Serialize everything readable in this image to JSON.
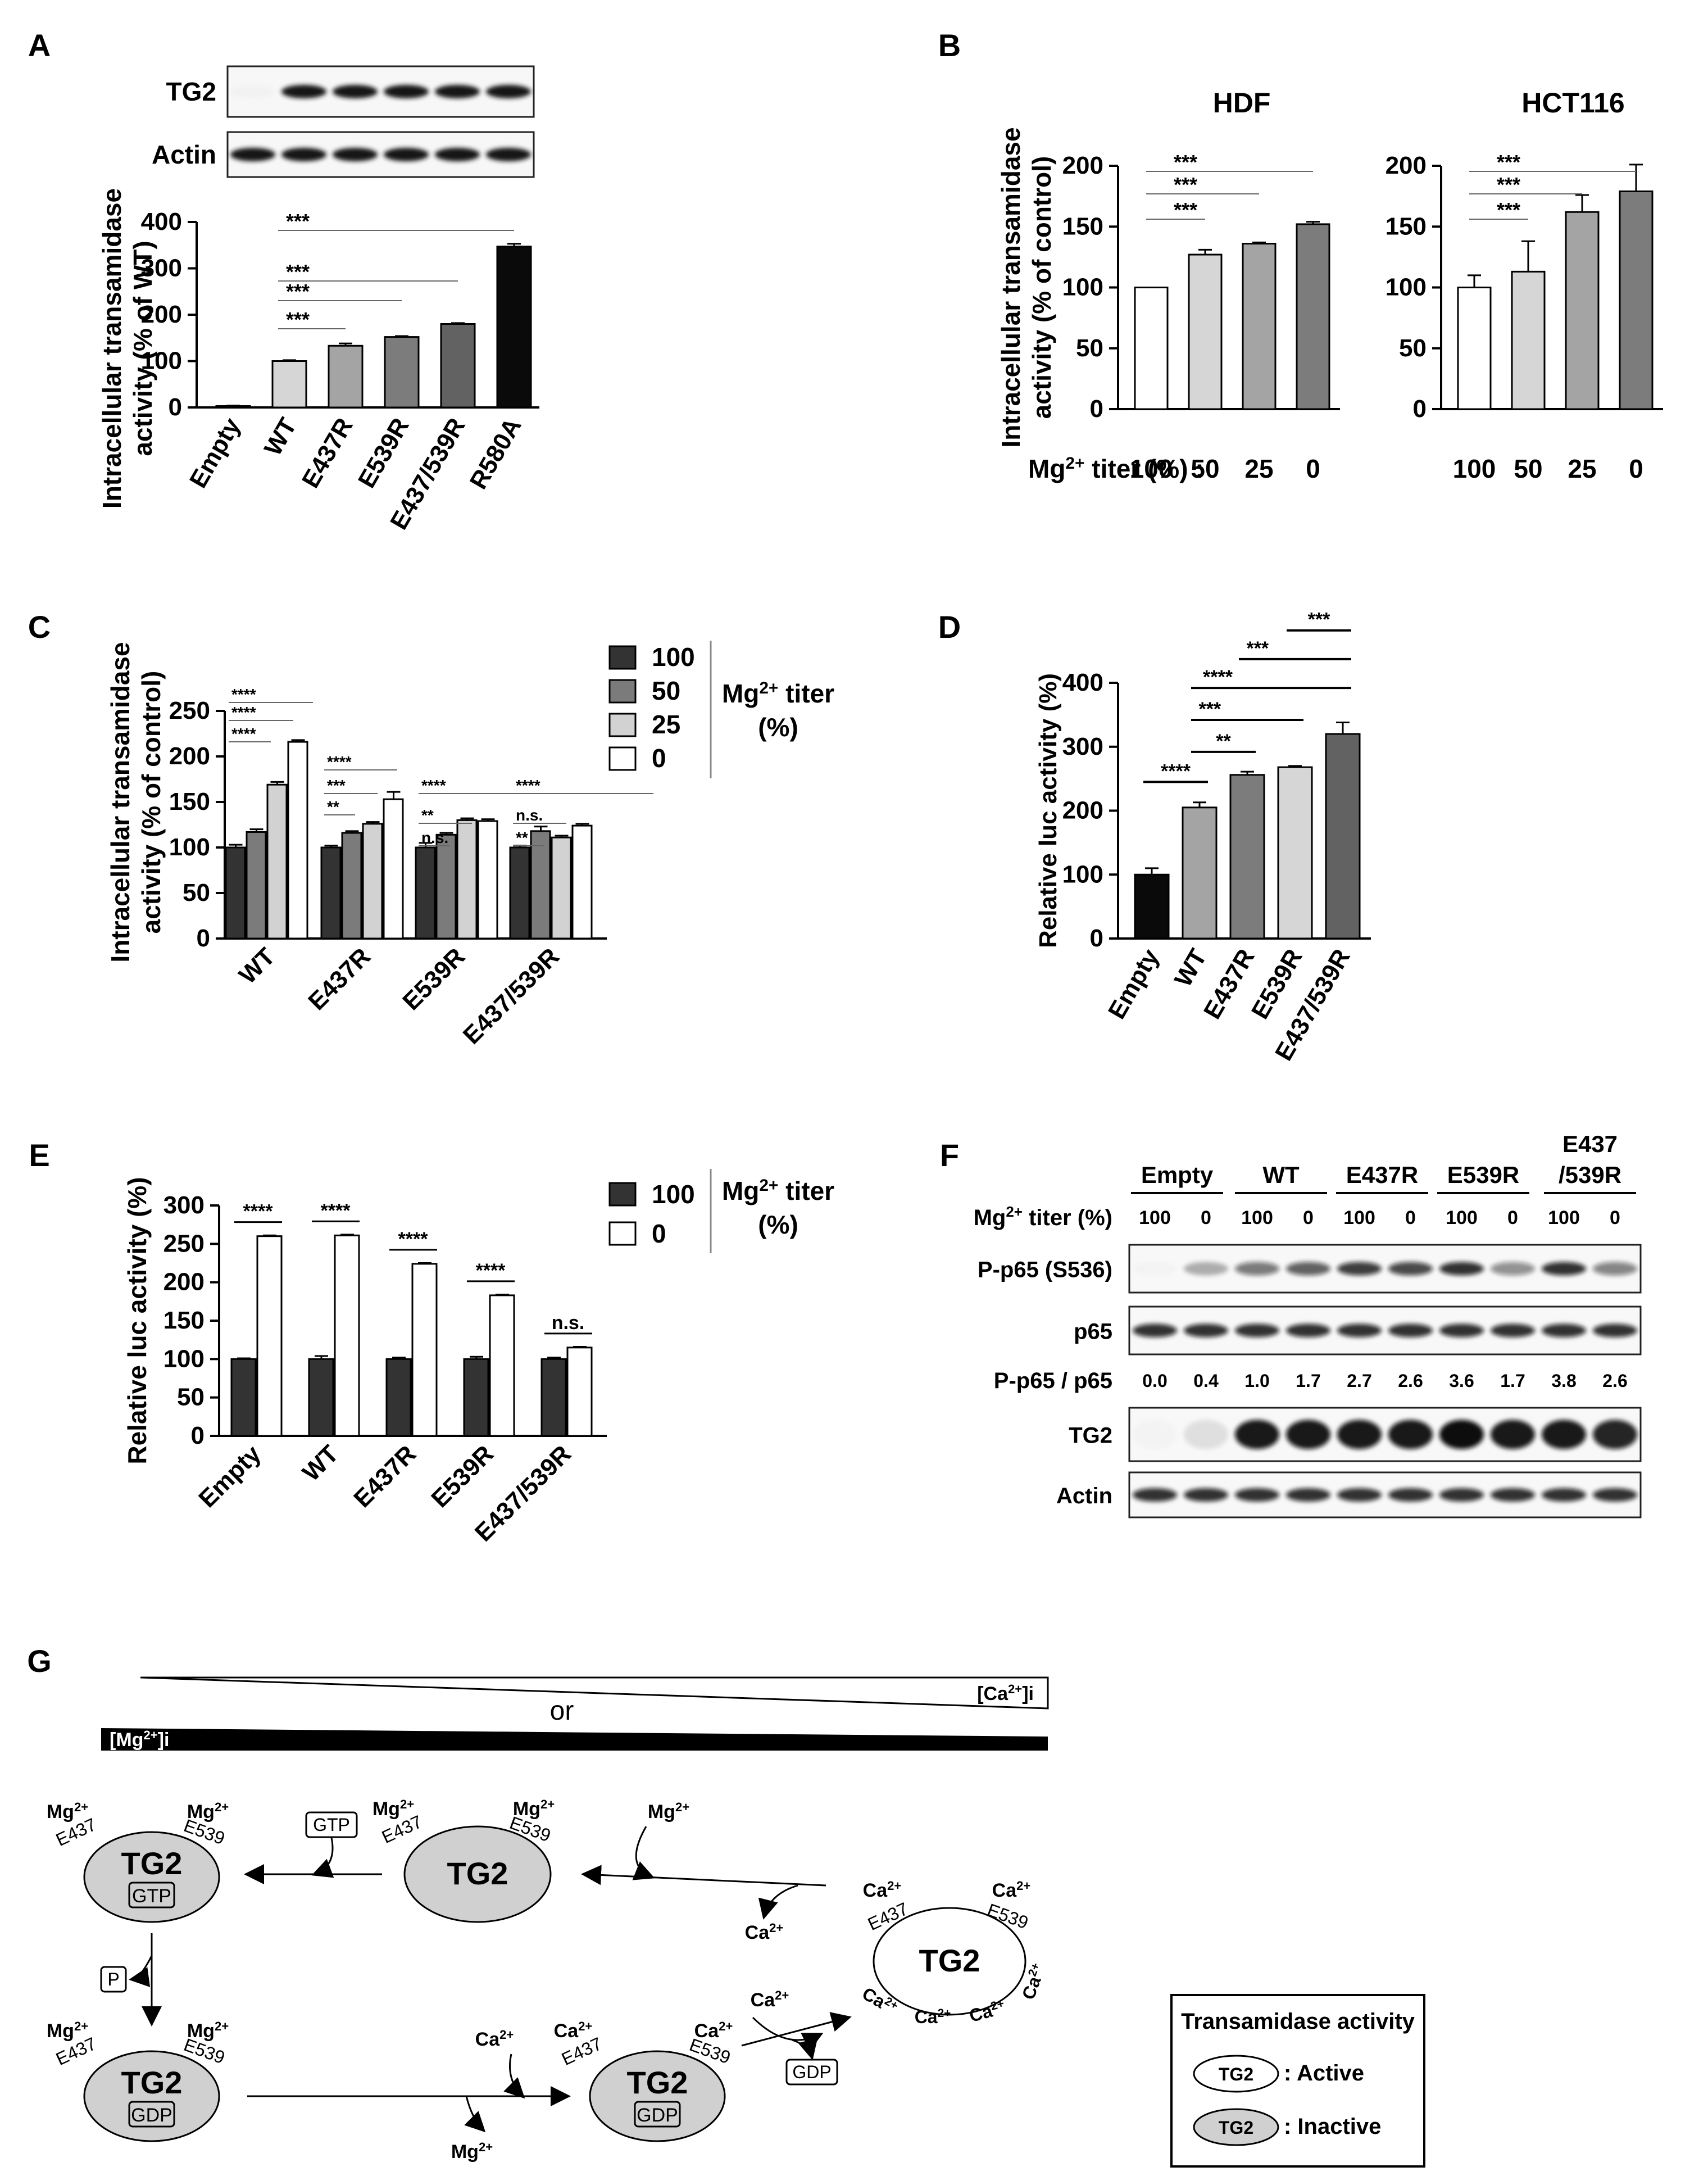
{
  "panel_labels": [
    "A",
    "B",
    "C",
    "D",
    "E",
    "F",
    "G"
  ],
  "sig_colors": {
    "line": "#666666",
    "text": "#000000"
  },
  "colors": {
    "black": "#0a0a0a",
    "white": "#ffffff",
    "light": "#d6d6d6",
    "mid": "#a4a4a4",
    "dark": "#7c7c7c",
    "darker": "#626262",
    "bar100": "#333333",
    "bar50": "#7b7b7b",
    "bar25": "#d2d2d2",
    "inactive_fill": "#d0d0d0"
  },
  "chart_data": [
    {
      "id": "A",
      "type": "bar",
      "ylabel": "Intracellular transamidase activity (% of WT)",
      "ylabel_lines": [
        "Intracellular transamidase",
        "activity (% of WT)"
      ],
      "categories": [
        "Empty",
        "WT",
        "E437R",
        "E539R",
        "E437/539R",
        "R580A"
      ],
      "values": [
        3,
        100,
        133,
        152,
        180,
        347
      ],
      "errors": [
        1,
        2,
        5,
        2,
        2,
        6
      ],
      "colors": [
        "#0a0a0a",
        "#d6d6d6",
        "#a4a4a4",
        "#7c7c7c",
        "#626262",
        "#0a0a0a"
      ],
      "ylim": [
        0,
        400
      ],
      "yticks": [
        0,
        100,
        200,
        300,
        400
      ],
      "significance": [
        {
          "from": 1,
          "to": 2,
          "label": "***",
          "level": 0
        },
        {
          "from": 1,
          "to": 3,
          "label": "***",
          "level": 1
        },
        {
          "from": 1,
          "to": 4,
          "label": "***",
          "level": 2
        },
        {
          "from": 1,
          "to": 5,
          "label": "***",
          "level": 3
        }
      ],
      "blot_labels": [
        "TG2",
        "Actin"
      ]
    },
    {
      "id": "B-HDF",
      "type": "bar",
      "title": "HDF",
      "ylabel": "Intracellular transamidase activity (% of control)",
      "ylabel_lines": [
        "Intracellular transamidase",
        "activity (% of control)"
      ],
      "categories": [
        "100",
        "50",
        "25",
        "0"
      ],
      "values": [
        100,
        127,
        136,
        152
      ],
      "errors": [
        0,
        4,
        1,
        2
      ],
      "colors": [
        "#ffffff",
        "#d6d6d6",
        "#a4a4a4",
        "#7c7c7c"
      ],
      "ylim": [
        0,
        200
      ],
      "yticks": [
        0,
        50,
        100,
        150,
        200
      ],
      "xtitle": "Mg2+ titer (%) :",
      "significance": [
        {
          "from": 0,
          "to": 1,
          "label": "***",
          "level": 0
        },
        {
          "from": 0,
          "to": 2,
          "label": "***",
          "level": 1
        },
        {
          "from": 0,
          "to": 3,
          "label": "***",
          "level": 2
        }
      ]
    },
    {
      "id": "B-HCT116",
      "type": "bar",
      "title": "HCT116",
      "categories": [
        "100",
        "50",
        "25",
        "0"
      ],
      "values": [
        100,
        113,
        162,
        179
      ],
      "errors": [
        10,
        25,
        14,
        22
      ],
      "colors": [
        "#ffffff",
        "#d6d6d6",
        "#a4a4a4",
        "#7c7c7c"
      ],
      "ylim": [
        0,
        200
      ],
      "yticks": [
        0,
        50,
        100,
        150,
        200
      ],
      "significance": [
        {
          "from": 0,
          "to": 1,
          "label": "***",
          "level": 0
        },
        {
          "from": 0,
          "to": 2,
          "label": "***",
          "level": 1
        },
        {
          "from": 0,
          "to": 3,
          "label": "***",
          "level": 2
        }
      ]
    },
    {
      "id": "C",
      "type": "bar",
      "ylabel": "Intracellular transamidase activity (% of control)",
      "ylabel_lines": [
        "Intracellular transamidase",
        "activity (% of control)"
      ],
      "categories": [
        "WT",
        "E437R",
        "E539R",
        "E437/539R"
      ],
      "series": [
        {
          "name": "100",
          "values": [
            100,
            100,
            100,
            100
          ],
          "errors": [
            3,
            2,
            5,
            2
          ],
          "color": "#333333"
        },
        {
          "name": "50",
          "values": [
            117,
            116,
            114,
            118
          ],
          "errors": [
            3,
            2,
            2,
            5
          ],
          "color": "#7b7b7b"
        },
        {
          "name": "25",
          "values": [
            169,
            126,
            130,
            111
          ],
          "errors": [
            3,
            2,
            2,
            2
          ],
          "color": "#d2d2d2"
        },
        {
          "name": "0",
          "values": [
            216,
            153,
            129,
            124
          ],
          "errors": [
            2,
            8,
            2,
            2
          ],
          "color": "#ffffff"
        }
      ],
      "ylim": [
        0,
        250
      ],
      "yticks": [
        0,
        50,
        100,
        150,
        200,
        250
      ],
      "legend_title": [
        "Mg2+ titer",
        "(%)"
      ],
      "significance": [
        {
          "group": 0,
          "from": 0,
          "to": 1,
          "label": "****",
          "level": 0
        },
        {
          "group": 0,
          "from": 0,
          "to": 2,
          "label": "****",
          "level": 1
        },
        {
          "group": 0,
          "from": 0,
          "to": 3,
          "label": "****",
          "level": 2
        },
        {
          "group": 1,
          "from": 0,
          "to": 1,
          "label": "**",
          "level": 0
        },
        {
          "group": 1,
          "from": 0,
          "to": 2,
          "label": "***",
          "level": 1
        },
        {
          "group": 1,
          "from": 0,
          "to": 3,
          "label": "****",
          "level": 2
        },
        {
          "group": 2,
          "from": 0,
          "to": 1,
          "label": "n.s.",
          "level": 0
        },
        {
          "group": 2,
          "from": 0,
          "to": 2,
          "label": "**",
          "level": 1
        },
        {
          "group": 2,
          "from": 0,
          "to": 3,
          "label": "****",
          "level": 2
        },
        {
          "group": 3,
          "from": 0,
          "to": 1,
          "label": "**",
          "level": 0
        },
        {
          "group": 3,
          "from": 0,
          "to": 2,
          "label": "n.s.",
          "level": 1
        },
        {
          "group": 3,
          "from": 0,
          "to": 3,
          "label": "****",
          "level": 2
        }
      ]
    },
    {
      "id": "D",
      "type": "bar",
      "ylabel": "Relative luc activity (%)",
      "categories": [
        "Empty",
        "WT",
        "E437R",
        "E539R",
        "E437/539R"
      ],
      "values": [
        100,
        205,
        256,
        268,
        320
      ],
      "errors": [
        10,
        8,
        5,
        2,
        18
      ],
      "colors": [
        "#0a0a0a",
        "#a4a4a4",
        "#7c7c7c",
        "#d6d6d6",
        "#626262"
      ],
      "ylim": [
        0,
        400
      ],
      "yticks": [
        0,
        100,
        200,
        300,
        400
      ],
      "significance": [
        {
          "from": 0,
          "to": 1,
          "label": "****",
          "y": 245
        },
        {
          "from": 1,
          "to": 2,
          "label": "**",
          "y": 292
        },
        {
          "from": 1,
          "to": 3,
          "label": "***",
          "y": 342
        },
        {
          "from": 1,
          "to": 4,
          "label": "****",
          "y": 392
        },
        {
          "from": 2,
          "to": 4,
          "label": "***",
          "y": 437
        },
        {
          "from": 3,
          "to": 4,
          "label": "***",
          "y": 482
        }
      ]
    },
    {
      "id": "E",
      "type": "bar",
      "ylabel": "Relative luc activity (%)",
      "categories": [
        "Empty",
        "WT",
        "E437R",
        "E539R",
        "E437/539R"
      ],
      "series": [
        {
          "name": "100",
          "values": [
            100,
            100,
            100,
            100,
            100
          ],
          "errors": [
            1,
            4,
            2,
            3,
            2
          ],
          "color": "#333333"
        },
        {
          "name": "0",
          "values": [
            260,
            261,
            224,
            183,
            115
          ],
          "errors": [
            1,
            1,
            1,
            1,
            1
          ],
          "color": "#ffffff"
        }
      ],
      "ylim": [
        0,
        300
      ],
      "yticks": [
        0,
        50,
        100,
        150,
        200,
        250,
        300
      ],
      "legend_title": [
        "Mg2+ titer",
        "(%)"
      ],
      "significance": [
        {
          "group": 0,
          "label": "****"
        },
        {
          "group": 1,
          "label": "****"
        },
        {
          "group": 2,
          "label": "****"
        },
        {
          "group": 3,
          "label": "****"
        },
        {
          "group": 4,
          "label": "n.s."
        }
      ]
    }
  ],
  "panel_F": {
    "groups": [
      "Empty",
      "WT",
      "E437R",
      "E539R",
      "E437\n/539R"
    ],
    "group_lines": [
      [
        "Empty"
      ],
      [
        "WT"
      ],
      [
        "E437R"
      ],
      [
        "E539R"
      ],
      [
        "E437",
        "/539R"
      ]
    ],
    "titer_label": "Mg2+ titer (%)",
    "titers": [
      "100",
      "0",
      "100",
      "0",
      "100",
      "0",
      "100",
      "0",
      "100",
      "0"
    ],
    "rows": [
      "P-p65 (S536)",
      "p65",
      "TG2",
      "Actin"
    ],
    "ratio_label": "P-p65 / p65",
    "ratios": [
      "0.0",
      "0.4",
      "1.0",
      "1.7",
      "2.7",
      "2.6",
      "3.6",
      "1.7",
      "3.8",
      "2.6"
    ],
    "band_intensity": {
      "P-p65 (S536)": [
        0.02,
        0.3,
        0.55,
        0.65,
        0.8,
        0.75,
        0.85,
        0.45,
        0.85,
        0.5
      ],
      "p65": [
        0.85,
        0.85,
        0.85,
        0.85,
        0.85,
        0.85,
        0.85,
        0.85,
        0.85,
        0.85
      ],
      "TG2": [
        0.02,
        0.1,
        0.95,
        0.95,
        0.95,
        0.95,
        1.0,
        0.95,
        0.95,
        0.9
      ],
      "Actin": [
        0.85,
        0.85,
        0.85,
        0.85,
        0.85,
        0.85,
        0.85,
        0.85,
        0.85,
        0.85
      ]
    }
  },
  "panel_G": {
    "gradient_top_label": "[Ca2+]i",
    "gradient_or": "or",
    "gradient_bottom_label": "[Mg2+]i",
    "tg2": "TG2",
    "gtp": "GTP",
    "gdp": "GDP",
    "pi": "Pi",
    "mg": "Mg2+",
    "ca": "Ca2+",
    "e437": "E437",
    "e539": "E539",
    "legend_title": "Transamidase activity",
    "legend_active": ": Active",
    "legend_inactive": ": Inactive"
  }
}
